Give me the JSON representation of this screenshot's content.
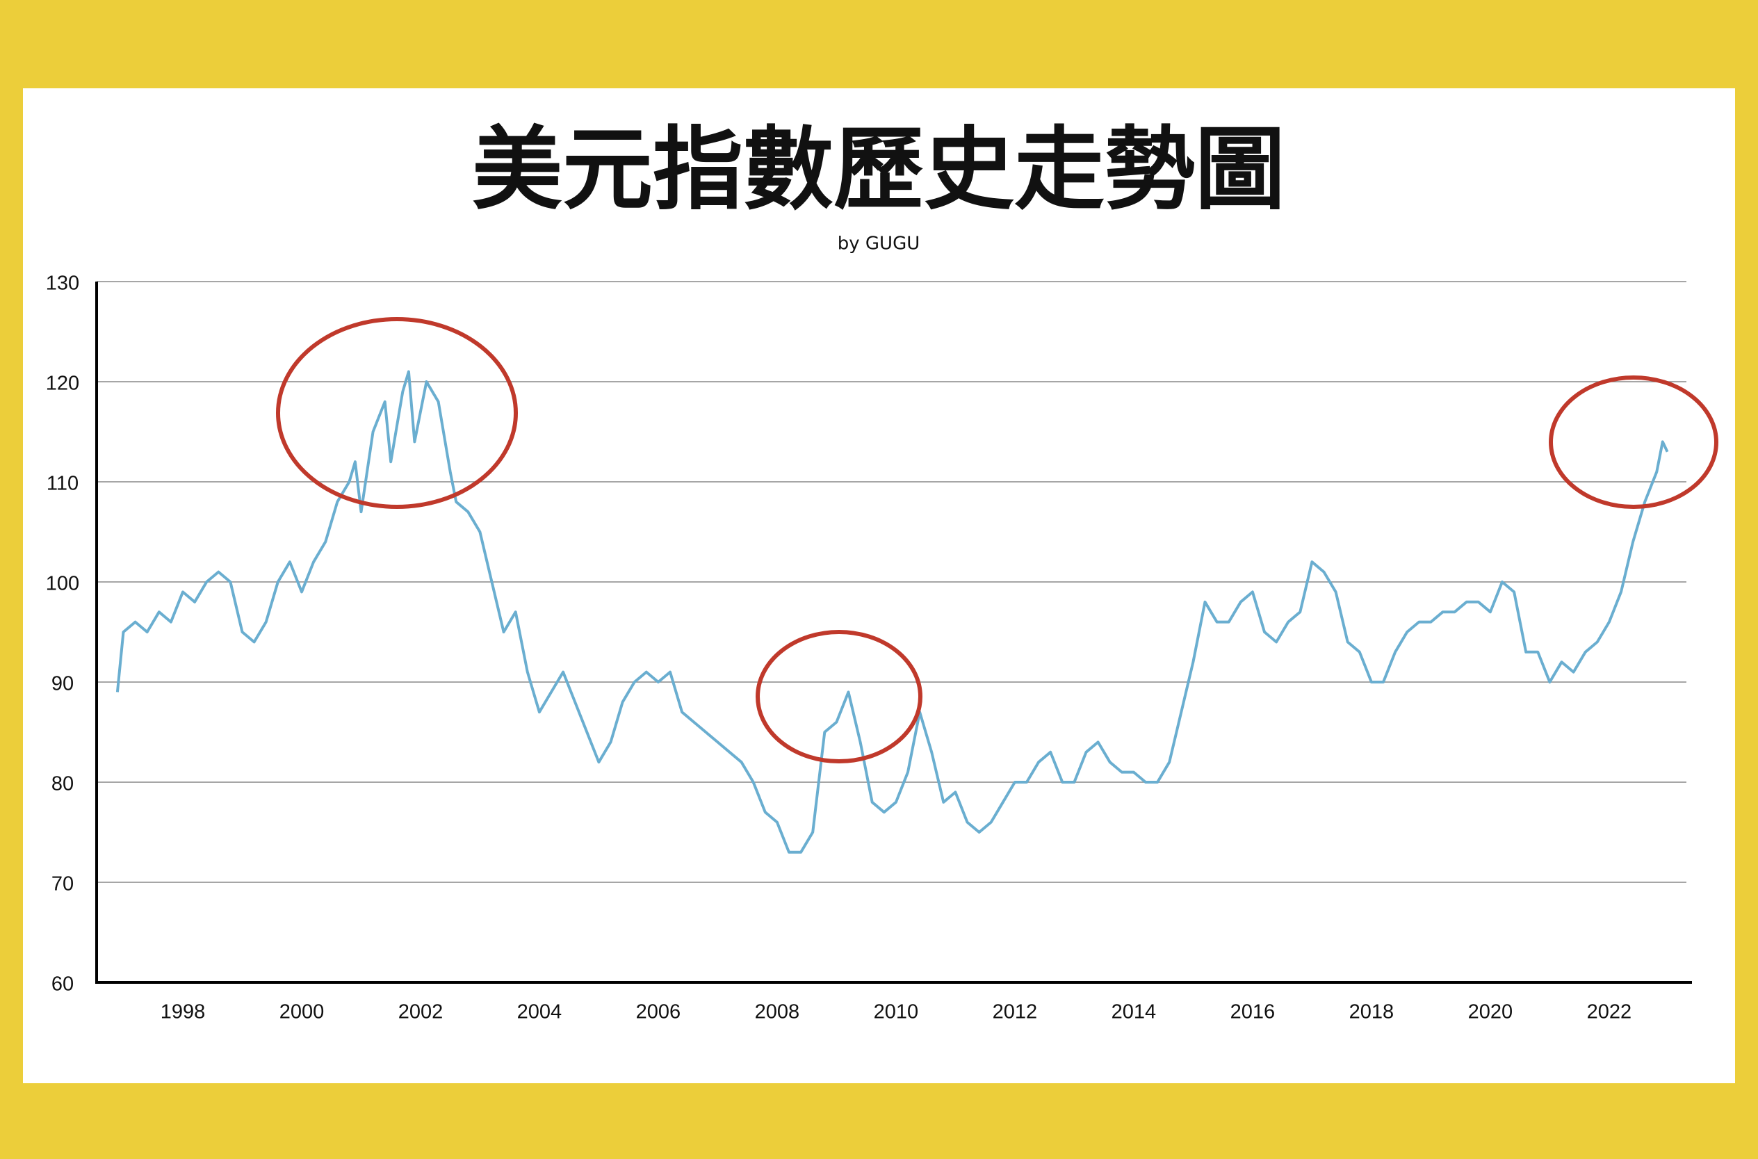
{
  "chart_data": {
    "type": "line",
    "title": "美元指數歷史走勢圖",
    "subtitle": "by GUGU",
    "color": "#6aaed0",
    "x": [
      1996.9,
      1997.0,
      1997.2,
      1997.4,
      1997.6,
      1997.8,
      1998.0,
      1998.2,
      1998.4,
      1998.6,
      1998.8,
      1999.0,
      1999.2,
      1999.4,
      1999.6,
      1999.8,
      2000.0,
      2000.2,
      2000.4,
      2000.6,
      2000.8,
      2000.9,
      2001.0,
      2001.2,
      2001.4,
      2001.5,
      2001.7,
      2001.8,
      2001.9,
      2002.0,
      2002.1,
      2002.3,
      2002.5,
      2002.6,
      2002.8,
      2003.0,
      2003.2,
      2003.4,
      2003.6,
      2003.8,
      2004.0,
      2004.2,
      2004.4,
      2004.6,
      2004.8,
      2005.0,
      2005.2,
      2005.4,
      2005.6,
      2005.8,
      2006.0,
      2006.2,
      2006.4,
      2006.6,
      2006.8,
      2007.0,
      2007.2,
      2007.4,
      2007.6,
      2007.8,
      2008.0,
      2008.2,
      2008.4,
      2008.6,
      2008.8,
      2009.0,
      2009.2,
      2009.4,
      2009.6,
      2009.8,
      2010.0,
      2010.2,
      2010.4,
      2010.6,
      2010.8,
      2011.0,
      2011.2,
      2011.4,
      2011.6,
      2011.8,
      2012.0,
      2012.2,
      2012.4,
      2012.6,
      2012.8,
      2013.0,
      2013.2,
      2013.4,
      2013.6,
      2013.8,
      2014.0,
      2014.2,
      2014.4,
      2014.6,
      2014.8,
      2015.0,
      2015.2,
      2015.4,
      2015.6,
      2015.8,
      2016.0,
      2016.2,
      2016.4,
      2016.6,
      2016.8,
      2017.0,
      2017.2,
      2017.4,
      2017.6,
      2017.8,
      2018.0,
      2018.2,
      2018.4,
      2018.6,
      2018.8,
      2019.0,
      2019.2,
      2019.4,
      2019.6,
      2019.8,
      2020.0,
      2020.2,
      2020.4,
      2020.6,
      2020.8,
      2021.0,
      2021.2,
      2021.4,
      2021.6,
      2021.8,
      2022.0,
      2022.2,
      2022.4,
      2022.6,
      2022.8,
      2022.9,
      2022.98
    ],
    "values": [
      89,
      95,
      96,
      95,
      97,
      96,
      99,
      98,
      100,
      101,
      100,
      95,
      94,
      96,
      100,
      102,
      99,
      102,
      104,
      108,
      110,
      112,
      107,
      115,
      118,
      112,
      119,
      121,
      114,
      117,
      120,
      118,
      111,
      108,
      107,
      105,
      100,
      95,
      97,
      91,
      87,
      89,
      91,
      88,
      85,
      82,
      84,
      88,
      90,
      91,
      90,
      91,
      87,
      86,
      85,
      84,
      83,
      82,
      80,
      77,
      76,
      73,
      73,
      75,
      85,
      86,
      89,
      84,
      78,
      77,
      78,
      81,
      87,
      83,
      78,
      79,
      76,
      75,
      76,
      78,
      80,
      80,
      82,
      83,
      80,
      80,
      83,
      84,
      82,
      81,
      81,
      80,
      80,
      82,
      87,
      92,
      98,
      96,
      96,
      98,
      99,
      95,
      94,
      96,
      97,
      102,
      101,
      99,
      94,
      93,
      90,
      90,
      93,
      95,
      96,
      96,
      97,
      97,
      98,
      98,
      97,
      100,
      99,
      93,
      93,
      90,
      92,
      91,
      93,
      94,
      96,
      99,
      104,
      108,
      111,
      114,
      113
    ],
    "xlim": [
      1996.55,
      2023.3
    ],
    "ylim": [
      60,
      130
    ],
    "xticks": [
      1998,
      2000,
      2002,
      2004,
      2006,
      2008,
      2010,
      2012,
      2014,
      2016,
      2018,
      2020,
      2022
    ],
    "yticks": [
      60,
      70,
      80,
      90,
      100,
      110,
      120,
      130
    ],
    "grid": true
  }
}
